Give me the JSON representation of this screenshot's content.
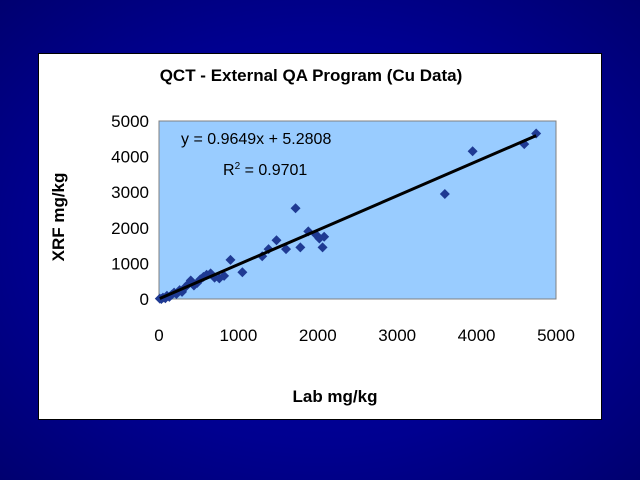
{
  "chart_data": {
    "type": "scatter",
    "title": "QCT - External QA Program (Cu Data)",
    "xlabel": "Lab mg/kg",
    "ylabel": "XRF mg/kg",
    "xlim": [
      0,
      5000
    ],
    "ylim": [
      0,
      5000
    ],
    "xticks": [
      0,
      1000,
      2000,
      3000,
      4000,
      5000
    ],
    "yticks": [
      0,
      1000,
      2000,
      3000,
      4000,
      5000
    ],
    "grid": false,
    "plot_background": "#99ccff",
    "marker_color": "#1f3a93",
    "trendline": {
      "slope": 0.9649,
      "intercept": 5.2808,
      "color": "#000000",
      "equation_label": "y = 0.9649x + 5.2808",
      "r2_prefix": "R",
      "r2_exponent": "2",
      "r2_value": " = 0.9701"
    },
    "series": [
      {
        "points": [
          [
            10,
            10
          ],
          [
            30,
            0
          ],
          [
            50,
            40
          ],
          [
            80,
            20
          ],
          [
            100,
            90
          ],
          [
            130,
            60
          ],
          [
            160,
            120
          ],
          [
            190,
            180
          ],
          [
            220,
            140
          ],
          [
            260,
            250
          ],
          [
            290,
            200
          ],
          [
            330,
            330
          ],
          [
            370,
            420
          ],
          [
            400,
            520
          ],
          [
            440,
            380
          ],
          [
            480,
            450
          ],
          [
            520,
            550
          ],
          [
            560,
            620
          ],
          [
            600,
            680
          ],
          [
            650,
            720
          ],
          [
            700,
            600
          ],
          [
            760,
            580
          ],
          [
            820,
            650
          ],
          [
            900,
            1100
          ],
          [
            1050,
            750
          ],
          [
            1300,
            1200
          ],
          [
            1380,
            1400
          ],
          [
            1480,
            1650
          ],
          [
            1600,
            1400
          ],
          [
            1720,
            2550
          ],
          [
            1780,
            1450
          ],
          [
            1880,
            1900
          ],
          [
            1980,
            1800
          ],
          [
            2020,
            1700
          ],
          [
            2060,
            1450
          ],
          [
            2080,
            1750
          ],
          [
            3600,
            2950
          ],
          [
            3950,
            4150
          ],
          [
            4600,
            4350
          ],
          [
            4750,
            4650
          ]
        ]
      }
    ]
  }
}
